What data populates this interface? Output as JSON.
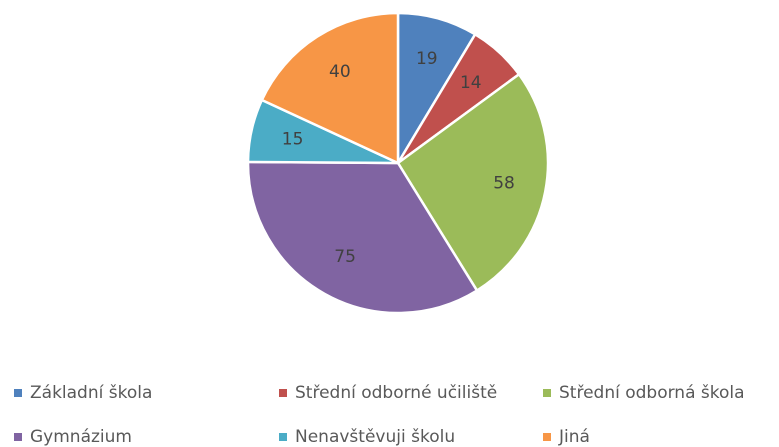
{
  "chart_data": {
    "type": "pie",
    "categories": [
      "Základní škola",
      "Střední odborné učiliště",
      "Střední odborná škola",
      "Gymnázium",
      "Nenavštěvuji školu",
      "Jiná"
    ],
    "values": [
      19,
      14,
      58,
      75,
      15,
      40
    ],
    "colors": [
      "#4f81bd",
      "#c0504d",
      "#9bbb59",
      "#8064a2",
      "#4bacc6",
      "#f79646"
    ],
    "legend": "bottom"
  }
}
